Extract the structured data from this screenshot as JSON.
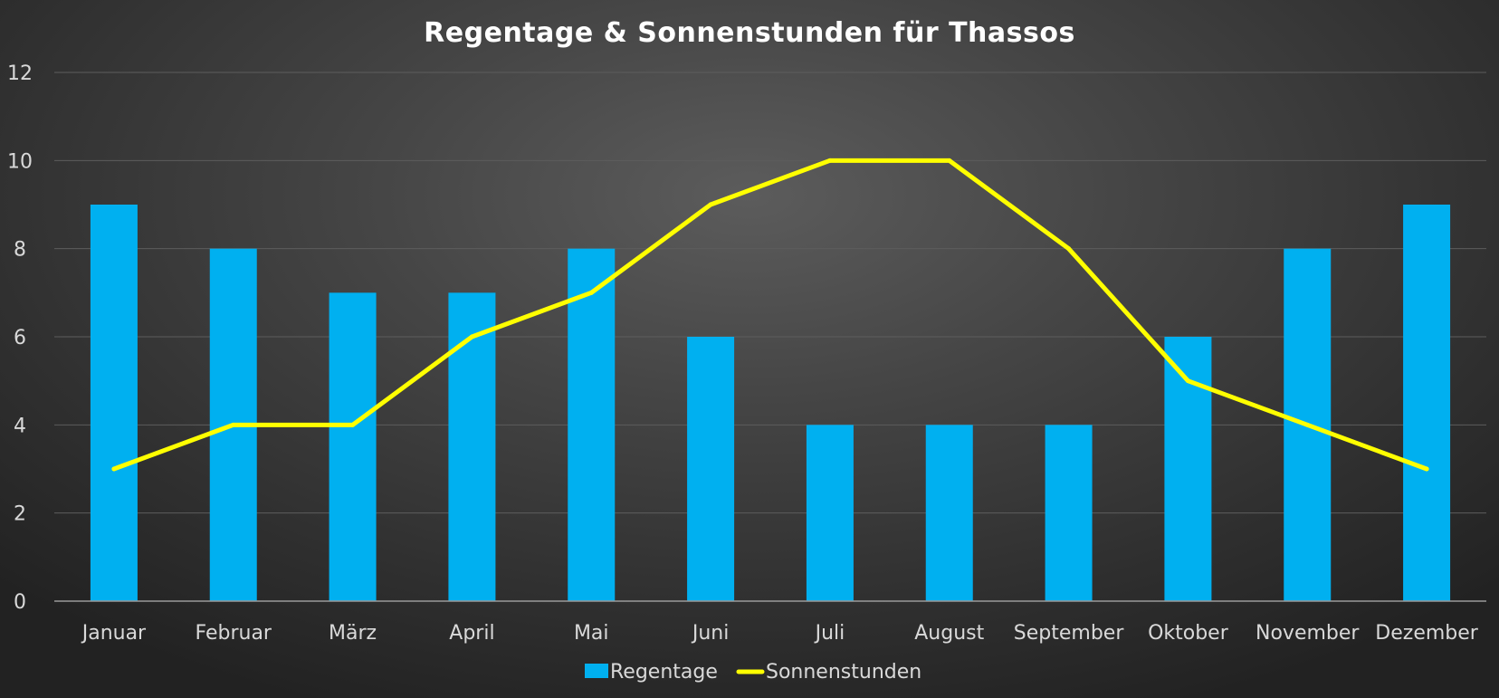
{
  "chart_data": {
    "type": "bar",
    "title": "Regentage & Sonnenstunden für Thassos",
    "xlabel": "",
    "ylabel": "",
    "ylim": [
      0,
      12
    ],
    "yticks": [
      0,
      2,
      4,
      6,
      8,
      10,
      12
    ],
    "grid": true,
    "legend_position": "bottom",
    "categories": [
      "Januar",
      "Februar",
      "März",
      "April",
      "Mai",
      "Juni",
      "Juli",
      "August",
      "September",
      "Oktober",
      "November",
      "Dezember"
    ],
    "series": [
      {
        "name": "Regentage",
        "type": "bar",
        "color": "#00b0f0",
        "values": [
          9,
          8,
          7,
          7,
          8,
          6,
          4,
          4,
          4,
          6,
          8,
          9
        ]
      },
      {
        "name": "Sonnenstunden",
        "type": "line",
        "color": "#ffff00",
        "values": [
          3,
          4,
          4,
          6,
          7,
          9,
          10,
          10,
          8,
          5,
          4,
          3
        ]
      }
    ]
  }
}
